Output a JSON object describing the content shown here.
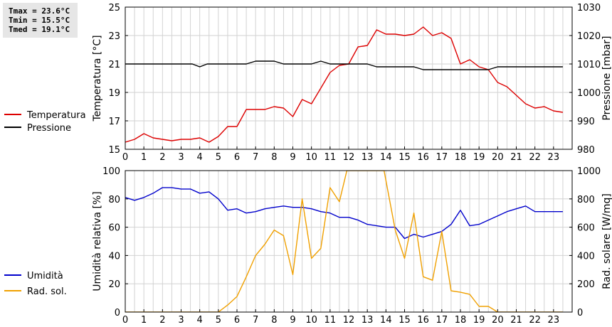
{
  "stats": {
    "tmax": "Tmax = 23.6°C",
    "tmin": "Tmin = 15.5°C",
    "tmed": "Tmed = 19.1°C"
  },
  "chart_data": [
    {
      "type": "line",
      "ylabel": "Temperatura [°C]",
      "y2label": "Pressione [mbar]",
      "xlim": [
        0,
        24
      ],
      "xticks": [
        "0",
        "1",
        "2",
        "3",
        "4",
        "5",
        "6",
        "7",
        "8",
        "9",
        "10",
        "11",
        "12",
        "13",
        "14",
        "15",
        "16",
        "17",
        "18",
        "19",
        "20",
        "21",
        "22",
        "23"
      ],
      "ylim": [
        15,
        25
      ],
      "yticks": [
        "15",
        "17",
        "19",
        "21",
        "23",
        "25"
      ],
      "y2lim": [
        980,
        1030
      ],
      "y2ticks": [
        "980",
        "990",
        "1000",
        "1010",
        "1020",
        "1030"
      ],
      "grid": true,
      "legend": "left",
      "series": [
        {
          "name": "Temperatura",
          "color": "#dd0000",
          "axis": "left",
          "x": [
            0,
            0.5,
            1,
            1.5,
            2,
            2.5,
            3,
            3.5,
            4,
            4.5,
            5,
            5.5,
            6,
            6.5,
            7,
            7.5,
            8,
            8.5,
            9,
            9.5,
            10,
            10.5,
            11,
            11.5,
            12,
            12.5,
            13,
            13.5,
            14,
            14.5,
            15,
            15.5,
            16,
            16.5,
            17,
            17.5,
            18,
            18.5,
            19,
            19.5,
            20,
            20.5,
            21,
            21.5,
            22,
            22.5,
            23,
            23.5
          ],
          "y": [
            15.5,
            15.7,
            16.1,
            15.8,
            15.7,
            15.6,
            15.7,
            15.7,
            15.8,
            15.5,
            15.9,
            16.6,
            16.6,
            17.8,
            17.8,
            17.8,
            18.0,
            17.9,
            17.3,
            18.5,
            18.2,
            19.3,
            20.4,
            20.9,
            21.0,
            22.2,
            22.3,
            23.4,
            23.1,
            23.1,
            23.0,
            23.1,
            23.6,
            23.0,
            23.2,
            22.8,
            21.0,
            21.3,
            20.8,
            20.6,
            19.7,
            19.4,
            18.8,
            18.2,
            17.9,
            18.0,
            17.7,
            17.6
          ]
        },
        {
          "name": "Pressione",
          "color": "#000000",
          "axis": "right",
          "x": [
            0,
            1,
            2,
            3,
            3.6,
            4,
            4.4,
            5,
            6,
            6.5,
            7,
            8,
            8.5,
            9,
            10,
            10.5,
            11,
            12,
            12.5,
            13,
            13.5,
            14,
            15,
            15.5,
            16,
            17,
            18,
            18.5,
            19,
            19.5,
            20,
            21,
            22,
            23,
            23.5
          ],
          "y": [
            1010,
            1010,
            1010,
            1010,
            1010,
            1009,
            1010,
            1010,
            1010,
            1010,
            1011,
            1011,
            1010,
            1010,
            1010,
            1011,
            1010,
            1010,
            1010,
            1010,
            1009,
            1009,
            1009,
            1009,
            1008,
            1008,
            1008,
            1008,
            1008,
            1008,
            1009,
            1009,
            1009,
            1009,
            1009
          ]
        }
      ]
    },
    {
      "type": "line",
      "ylabel": "Umidità relativa [%]",
      "y2label": "Rad. solare [W/mq]",
      "xlim": [
        0,
        24
      ],
      "xticks": [
        "0",
        "1",
        "2",
        "3",
        "4",
        "5",
        "6",
        "7",
        "8",
        "9",
        "10",
        "11",
        "12",
        "13",
        "14",
        "15",
        "16",
        "17",
        "18",
        "19",
        "20",
        "21",
        "22",
        "23"
      ],
      "ylim": [
        0,
        100
      ],
      "yticks": [
        "0",
        "20",
        "40",
        "60",
        "80",
        "100"
      ],
      "y2lim": [
        0,
        1000
      ],
      "y2ticks": [
        "0",
        "200",
        "400",
        "600",
        "800",
        "1000"
      ],
      "grid": true,
      "legend": "left",
      "series": [
        {
          "name": "Umidità",
          "color": "#0000cc",
          "axis": "left",
          "x": [
            0,
            0.5,
            1,
            1.5,
            2,
            2.5,
            3,
            3.5,
            4,
            4.5,
            5,
            5.5,
            6,
            6.5,
            7,
            7.5,
            8,
            8.5,
            9,
            9.5,
            10,
            10.5,
            11,
            11.5,
            12,
            12.5,
            13,
            13.5,
            14,
            14.5,
            15,
            15.5,
            16,
            16.5,
            17,
            17.5,
            18,
            18.5,
            19,
            19.5,
            20,
            20.5,
            21,
            21.5,
            22,
            22.5,
            23,
            23.5
          ],
          "y": [
            81,
            79,
            81,
            84,
            88,
            88,
            87,
            87,
            84,
            85,
            80,
            72,
            73,
            70,
            71,
            73,
            74,
            75,
            74,
            74,
            73,
            71,
            70,
            67,
            67,
            65,
            62,
            61,
            60,
            60,
            52,
            55,
            53,
            55,
            57,
            62,
            72,
            61,
            62,
            65,
            68,
            71,
            73,
            75,
            71,
            71,
            71,
            71
          ]
        },
        {
          "name": "Rad. sol.",
          "color": "#f0a000",
          "axis": "right",
          "x": [
            0,
            1,
            2,
            3,
            4,
            4.5,
            5,
            5.5,
            6,
            6.5,
            7,
            7.5,
            8,
            8.5,
            9,
            9.5,
            10,
            10.5,
            11,
            11.5,
            11.9,
            13.9,
            14.5,
            15,
            15.5,
            16,
            16.5,
            17,
            17.5,
            18,
            18.5,
            19,
            19.5,
            20,
            20.5,
            21,
            22,
            23,
            23.5
          ],
          "y": [
            0,
            0,
            0,
            0,
            0,
            0,
            0,
            50,
            110,
            250,
            400,
            480,
            580,
            540,
            265,
            800,
            380,
            450,
            880,
            780,
            1000,
            1000,
            580,
            380,
            700,
            250,
            225,
            570,
            150,
            140,
            125,
            40,
            40,
            0,
            0,
            0,
            0,
            0,
            0
          ]
        }
      ]
    }
  ]
}
